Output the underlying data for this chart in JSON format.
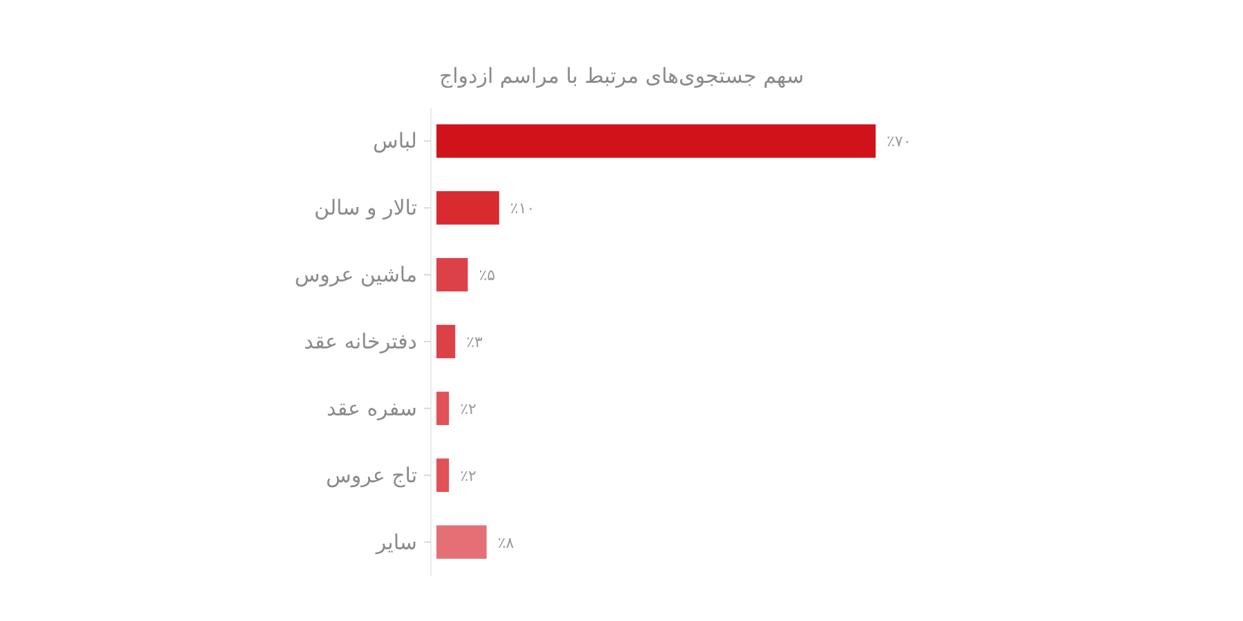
{
  "chart_data": {
    "type": "bar",
    "orientation": "horizontal",
    "title": "سهم جستجوی‌های مرتبط با مراسم ازدواج",
    "categories": [
      "لباس",
      "تالار و سالن",
      "ماشین عروس",
      "دفترخانه عقد",
      "سفره عقد",
      "تاج عروس",
      "سایر"
    ],
    "values": [
      70,
      10,
      5,
      3,
      2,
      2,
      8
    ],
    "colors": [
      "#d0121a",
      "#d92a30",
      "#dc4148",
      "#dc4148",
      "#e05258",
      "#e05258",
      "#e47076"
    ],
    "value_labels": [
      "٪۷۰",
      "٪۱۰",
      "٪۵",
      "٪۳",
      "٪۲",
      "٪۲",
      "٪۸"
    ]
  }
}
